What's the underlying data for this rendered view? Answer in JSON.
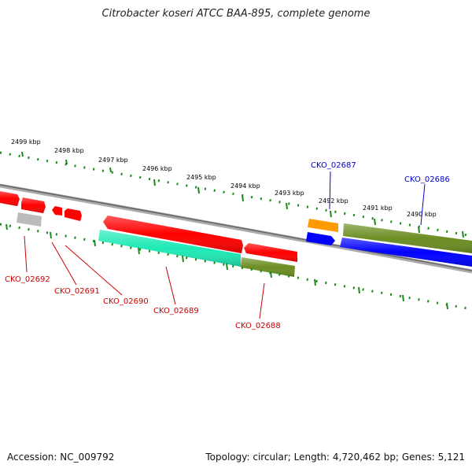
{
  "title": "Citrobacter koseri ATCC BAA-895, complete genome",
  "footer": {
    "accession": "Accession: NC_009792",
    "summary": "Topology: circular; Length: 4,720,462 bp; Genes: 5,121"
  },
  "scale_labels": [
    "2499 kbp",
    "2498 kbp",
    "2497 kbp",
    "2496 kbp",
    "2495 kbp",
    "2494 kbp",
    "2493 kbp",
    "2492 kbp",
    "2491 kbp",
    "2490 kbp"
  ],
  "gene_labels": {
    "CKO_02692": "CKO_02692",
    "CKO_02691": "CKO_02691",
    "CKO_02690": "CKO_02690",
    "CKO_02689": "CKO_02689",
    "CKO_02688": "CKO_02688",
    "CKO_02687": "CKO_02687",
    "CKO_02686": "CKO_02686"
  },
  "colors": {
    "red": "#ff0000",
    "green": "#6b8e23",
    "teal": "#1de9b6",
    "blue": "#0000ff",
    "orange": "#ff9900",
    "gray": "#bbbbbb",
    "tick": "#1a8a1a",
    "backbone": "#888888"
  }
}
